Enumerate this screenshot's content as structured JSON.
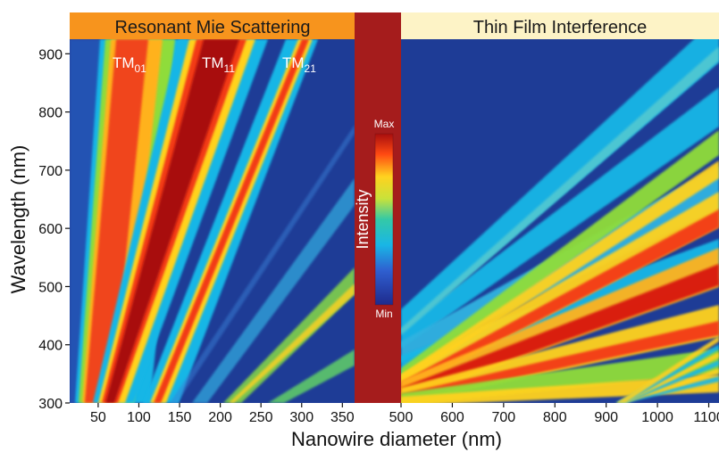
{
  "chart_data": {
    "type": "heatmap",
    "panels": [
      {
        "title": "Resonant Mie Scattering",
        "x_ticks": [
          50,
          100,
          150,
          200,
          250,
          300,
          350
        ],
        "xlim": [
          15,
          365
        ],
        "mode_labels": [
          {
            "base": "TM",
            "sub": "01"
          },
          {
            "base": "TM",
            "sub": "11"
          },
          {
            "base": "TM",
            "sub": "21"
          }
        ]
      },
      {
        "title": "Thin Film Interference",
        "x_ticks": [
          500,
          600,
          700,
          800,
          900,
          1000,
          1100
        ],
        "xlim": [
          500,
          1120
        ]
      }
    ],
    "colorbar": {
      "label": "Intensity",
      "max_label": "Max",
      "min_label": "Min"
    },
    "xlabel": "Nanowire diameter (nm)",
    "ylabel": "Wavelength (nm)",
    "ylim": [
      300,
      925
    ],
    "y_ticks": [
      300,
      400,
      500,
      600,
      700,
      800,
      900
    ],
    "colors": {
      "title_left_bg": "#f7941d",
      "title_right_bg": "#fdf3c6",
      "divider": "#a51c1c",
      "background": "#1e3c96"
    }
  }
}
